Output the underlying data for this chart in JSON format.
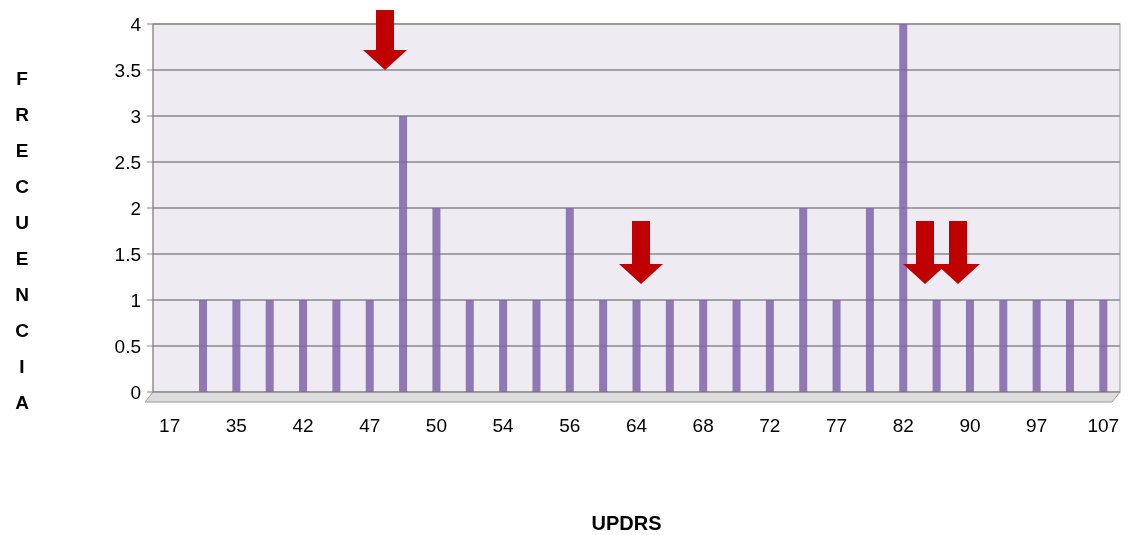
{
  "chart_data": {
    "type": "bar",
    "xlabel": "UPDRS",
    "ylabel": "FRECUENCIA",
    "categories": [
      "17",
      null,
      "35",
      null,
      "42",
      null,
      "47",
      null,
      "50",
      null,
      "54",
      null,
      "56",
      null,
      "64",
      null,
      "68",
      null,
      "72",
      null,
      "77",
      null,
      "82",
      null,
      "90",
      null,
      "97",
      null,
      "107"
    ],
    "values": [
      0,
      1,
      1,
      1,
      1,
      1,
      1,
      3,
      2,
      1,
      1,
      1,
      2,
      1,
      1,
      1,
      1,
      1,
      1,
      2,
      1,
      2,
      4,
      1,
      1,
      1,
      1,
      1,
      1
    ],
    "color": "#8064a8",
    "ylim": [
      0,
      4
    ],
    "yticks": [
      0,
      0.5,
      1,
      1.5,
      2,
      2.5,
      3,
      3.5,
      4
    ],
    "grid": "y"
  }
}
